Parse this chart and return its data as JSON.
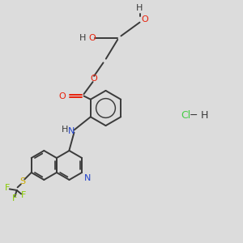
{
  "bg_color": "#dcdcdc",
  "bond_color": "#3a3a3a",
  "o_color": "#e8200a",
  "n_color": "#2244cc",
  "s_color": "#ccaa00",
  "f_color": "#88cc00",
  "cl_color": "#44cc44",
  "figsize": [
    3.0,
    3.0
  ],
  "dpi": 100,
  "xlim": [
    0,
    10
  ],
  "ylim": [
    0,
    10
  ]
}
